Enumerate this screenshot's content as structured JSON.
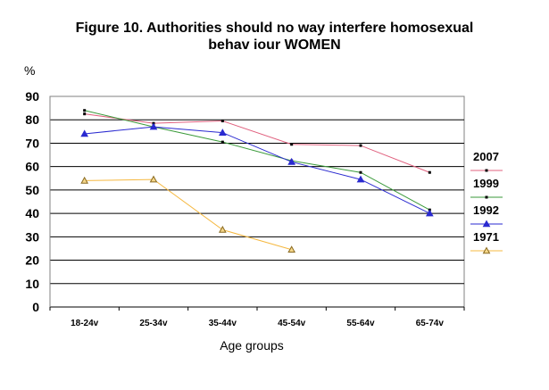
{
  "chart_data": {
    "type": "line",
    "title_line1": "Figure 10. Authorities should no way interfere homosexual",
    "title_line2": "behav iour WOMEN",
    "ylabel": "%",
    "xlabel": "Age groups",
    "ylim": [
      0,
      90
    ],
    "y_ticks": [
      0,
      10,
      20,
      30,
      40,
      50,
      60,
      70,
      80,
      90
    ],
    "categories": [
      "18-24v",
      "25-34v",
      "35-44v",
      "45-54v",
      "55-64v",
      "65-74v"
    ],
    "grid": true,
    "legend_position": "right",
    "series": [
      {
        "name": "2007",
        "color": "#e0607e",
        "marker": "square",
        "values": [
          82.5,
          78.5,
          79.5,
          69.5,
          69,
          57.5
        ]
      },
      {
        "name": "1999",
        "color": "#3a9a3a",
        "marker": "square",
        "values": [
          84,
          77,
          70.5,
          62.5,
          57.5,
          41.5
        ]
      },
      {
        "name": "1992",
        "color": "#2a2ad0",
        "marker": "triangle",
        "values": [
          74,
          77,
          74.5,
          62,
          54.5,
          40
        ]
      },
      {
        "name": "1971",
        "color": "#f5b840",
        "marker": "triangle-open",
        "values": [
          54,
          54.5,
          33,
          24.5,
          null,
          null
        ]
      }
    ]
  }
}
